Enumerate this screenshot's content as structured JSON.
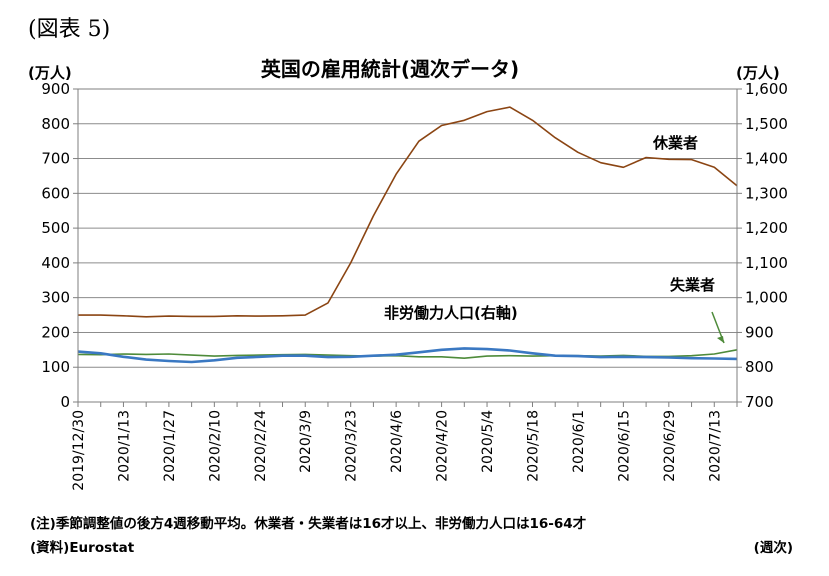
{
  "figure_label": "(図表 5)",
  "chart_data": {
    "type": "line",
    "title": "英国の雇用統計(週次データ)",
    "y_left_unit": "(万人)",
    "y_right_unit": "(万人)",
    "x_unit": "(週次)",
    "ylim_left": [
      0,
      900
    ],
    "ylim_right": [
      700,
      1600
    ],
    "y_left_ticks": [
      "0",
      "100",
      "200",
      "300",
      "400",
      "500",
      "600",
      "700",
      "800",
      "900"
    ],
    "y_right_ticks": [
      "700",
      "800",
      "900",
      "1,000",
      "1,100",
      "1,200",
      "1,300",
      "1,400",
      "1,500",
      "1,600"
    ],
    "x_tick_labels": [
      "2019/12/30",
      "2020/1/13",
      "2020/1/27",
      "2020/2/10",
      "2020/2/24",
      "2020/3/9",
      "2020/3/23",
      "2020/4/6",
      "2020/4/20",
      "2020/5/4",
      "2020/5/18",
      "2020/6/1",
      "2020/6/15",
      "2020/6/29",
      "2020/7/13"
    ],
    "x": [
      "2019/12/30",
      "2020/1/6",
      "2020/1/13",
      "2020/1/20",
      "2020/1/27",
      "2020/2/3",
      "2020/2/10",
      "2020/2/17",
      "2020/2/24",
      "2020/3/2",
      "2020/3/9",
      "2020/3/16",
      "2020/3/23",
      "2020/3/30",
      "2020/4/6",
      "2020/4/13",
      "2020/4/20",
      "2020/4/27",
      "2020/5/4",
      "2020/5/11",
      "2020/5/18",
      "2020/5/25",
      "2020/6/1",
      "2020/6/8",
      "2020/6/15",
      "2020/6/22",
      "2020/6/29",
      "2020/7/6",
      "2020/7/13",
      "2020/7/20"
    ],
    "grid": true,
    "series": [
      {
        "name": "休業者",
        "axis": "left",
        "color": "#8B4513",
        "values": [
          250,
          250,
          248,
          245,
          247,
          246,
          246,
          248,
          247,
          248,
          250,
          285,
          400,
          535,
          655,
          750,
          795,
          810,
          835,
          848,
          810,
          760,
          718,
          688,
          675,
          703,
          698,
          697,
          675,
          622
        ]
      },
      {
        "name": "失業者",
        "axis": "left",
        "color": "#4E8B3A",
        "values": [
          137,
          136,
          138,
          137,
          138,
          135,
          132,
          134,
          135,
          136,
          137,
          135,
          133,
          132,
          133,
          130,
          130,
          126,
          132,
          133,
          132,
          133,
          133,
          132,
          134,
          131,
          131,
          133,
          138,
          150
        ]
      },
      {
        "name": "非労働力人口(右軸)",
        "axis": "right",
        "color": "#3A78C2",
        "values": [
          845,
          840,
          830,
          822,
          818,
          815,
          820,
          827,
          830,
          833,
          833,
          829,
          830,
          833,
          836,
          843,
          850,
          854,
          852,
          848,
          840,
          833,
          832,
          829,
          830,
          829,
          828,
          826,
          825,
          824
        ]
      }
    ]
  },
  "annotations": {
    "furlough": "休業者",
    "unemployed": "失業者",
    "inactive": "非労働力人口(右軸)"
  },
  "note": "(注)季節調整値の後方4週移動平均。休業者・失業者は16才以上、非労働力人口は16-64才",
  "source": "(資料)Eurostat"
}
